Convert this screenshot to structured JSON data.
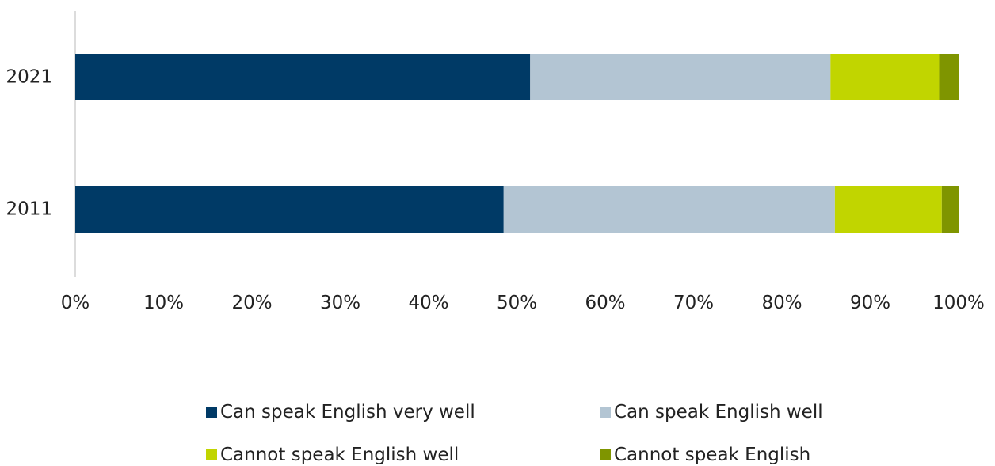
{
  "chart_data": {
    "type": "bar",
    "orientation": "horizontal",
    "stacked": "percent",
    "categories": [
      "2021",
      "2011"
    ],
    "x_ticks": [
      "0%",
      "10%",
      "20%",
      "30%",
      "40%",
      "50%",
      "60%",
      "70%",
      "80%",
      "90%",
      "100%"
    ],
    "xlim": [
      0,
      100
    ],
    "grid": false,
    "legend_position": "bottom",
    "series": [
      {
        "name": "Can speak English very well",
        "color": "#003A66",
        "values": [
          51.5,
          48.5
        ]
      },
      {
        "name": "Can speak English well",
        "color": "#B3C5D3",
        "values": [
          34.0,
          37.5
        ]
      },
      {
        "name": "Cannot speak English well",
        "color": "#C1D500",
        "values": [
          12.3,
          12.1
        ]
      },
      {
        "name": "Cannot speak English",
        "color": "#7F9500",
        "values": [
          2.2,
          1.9
        ]
      }
    ]
  }
}
